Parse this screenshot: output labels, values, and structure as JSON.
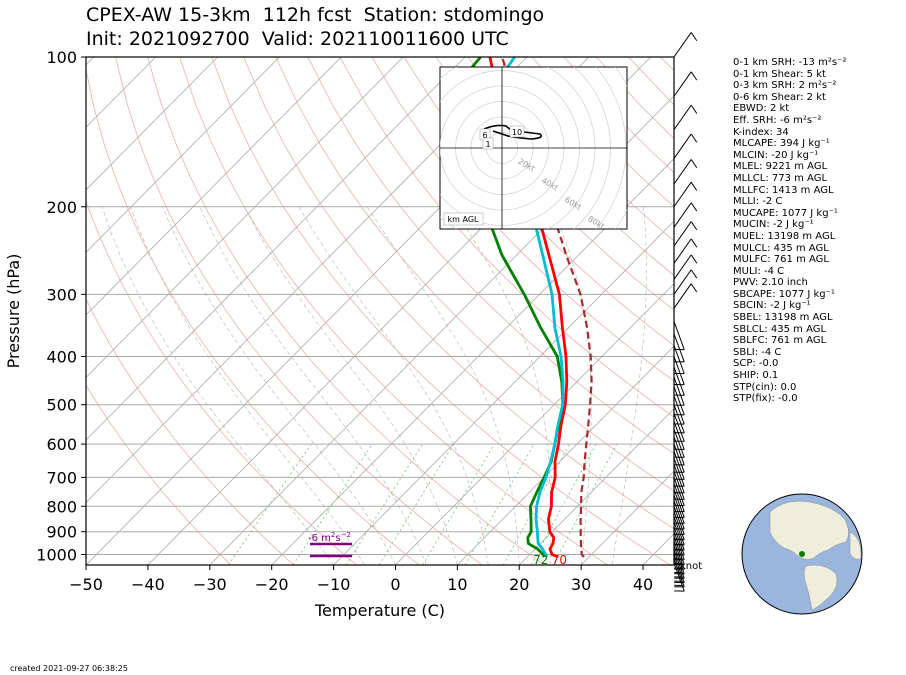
{
  "header": {
    "title_line1": "CPEX-AW 15-3km  112h fcst  Station: stdomingo",
    "title_line2": "Init: 2021092700  Valid: 202110011600 UTC"
  },
  "chart_data": {
    "type": "skew-t log-p",
    "xlabel": "Temperature (C)",
    "ylabel": "Pressure (hPa)",
    "xlim": [
      -50,
      45
    ],
    "ylim": [
      1050,
      100
    ],
    "y_scale": "log",
    "x_ticks": [
      -50,
      -40,
      -30,
      -20,
      -10,
      0,
      10,
      20,
      30,
      40
    ],
    "x_tick_labels": [
      "−50",
      "−40",
      "−30",
      "−20",
      "−10",
      "0",
      "10",
      "20",
      "30",
      "40"
    ],
    "y_ticks": [
      1000,
      900,
      800,
      700,
      600,
      500,
      400,
      300,
      200,
      100
    ],
    "grid": true,
    "series": [
      {
        "color": "#ff0000",
        "points": [
          [
            1012,
            25
          ],
          [
            1000,
            23.6
          ],
          [
            975,
            22.4
          ],
          [
            950,
            22
          ],
          [
            925,
            21.2
          ],
          [
            900,
            19.6
          ],
          [
            850,
            17.4
          ],
          [
            800,
            15.8
          ],
          [
            750,
            13.6
          ],
          [
            700,
            11.8
          ],
          [
            650,
            9.2
          ],
          [
            600,
            7
          ],
          [
            550,
            4.4
          ],
          [
            500,
            1.8
          ],
          [
            450,
            -1.6
          ],
          [
            400,
            -5.8
          ],
          [
            350,
            -11
          ],
          [
            300,
            -16.8
          ],
          [
            250,
            -24.8
          ],
          [
            200,
            -34.6
          ],
          [
            175,
            -40.6
          ],
          [
            150,
            -47.5
          ],
          [
            130,
            -54
          ],
          [
            120,
            -58
          ],
          [
            110,
            -62
          ],
          [
            100,
            -66
          ]
        ]
      },
      {
        "color": "#008000",
        "points": [
          [
            1012,
            22.8
          ],
          [
            1000,
            22.2
          ],
          [
            975,
            20.4
          ],
          [
            950,
            18
          ],
          [
            925,
            17
          ],
          [
            900,
            16.6
          ],
          [
            850,
            14.6
          ],
          [
            800,
            12.4
          ],
          [
            750,
            11.2
          ],
          [
            700,
            10
          ],
          [
            650,
            8.6
          ],
          [
            600,
            6.4
          ],
          [
            550,
            4
          ],
          [
            500,
            1.4
          ],
          [
            450,
            -2.4
          ],
          [
            400,
            -7.2
          ],
          [
            350,
            -14.5
          ],
          [
            300,
            -22.5
          ],
          [
            250,
            -32.4
          ],
          [
            200,
            -43
          ],
          [
            175,
            -49.5
          ],
          [
            150,
            -56
          ],
          [
            130,
            -63
          ],
          [
            120,
            -66
          ],
          [
            110,
            -67
          ],
          [
            100,
            -67.5
          ]
        ]
      },
      {
        "color": "#00bcd4",
        "points": [
          [
            1012,
            23.2
          ],
          [
            1000,
            22.6
          ],
          [
            975,
            21.2
          ],
          [
            950,
            19.6
          ],
          [
            925,
            18.6
          ],
          [
            900,
            17.6
          ],
          [
            850,
            15.4
          ],
          [
            800,
            13.4
          ],
          [
            750,
            11.7
          ],
          [
            700,
            10.3
          ],
          [
            650,
            8.5
          ],
          [
            600,
            6.4
          ],
          [
            550,
            3.9
          ],
          [
            500,
            1.4
          ],
          [
            450,
            -2.2
          ],
          [
            400,
            -6.6
          ],
          [
            350,
            -12.2
          ],
          [
            300,
            -18
          ],
          [
            250,
            -25.8
          ],
          [
            200,
            -35.4
          ],
          [
            175,
            -41.4
          ],
          [
            150,
            -48
          ],
          [
            130,
            -54.5
          ],
          [
            120,
            -58
          ],
          [
            110,
            -61
          ],
          [
            100,
            -62
          ]
        ]
      },
      {
        "color": "#a52a2a",
        "dash": true,
        "points": [
          [
            1012,
            29.2
          ],
          [
            1000,
            28.4
          ],
          [
            950,
            26.5
          ],
          [
            900,
            24.6
          ],
          [
            850,
            22.6
          ],
          [
            800,
            20.6
          ],
          [
            750,
            18.4
          ],
          [
            700,
            16.4
          ],
          [
            650,
            14
          ],
          [
            600,
            11.5
          ],
          [
            550,
            8.8
          ],
          [
            500,
            5.8
          ],
          [
            450,
            2.4
          ],
          [
            400,
            -1.8
          ],
          [
            350,
            -7
          ],
          [
            300,
            -13.4
          ],
          [
            250,
            -22
          ],
          [
            200,
            -32.2
          ],
          [
            150,
            -45.4
          ],
          [
            120,
            -56
          ],
          [
            100,
            -64
          ]
        ]
      }
    ],
    "surface_labels": [
      {
        "text": "72",
        "color": "#008000",
        "t": 22.2
      },
      {
        "text": "70",
        "color": "#ff0000",
        "t": 25.2
      }
    ],
    "srh_annotation": "-6 m$^2$s$^{-2}$",
    "knot_label": "knot",
    "hodograph": {
      "rings": [
        "20kt",
        "40kt",
        "60kt",
        "80kt"
      ],
      "labels": [
        "6",
        "10",
        "1"
      ],
      "footer": "km AGL"
    }
  },
  "stats": [
    "0-1 km SRH: -13 m²s⁻²",
    "0-1 km Shear: 5 kt",
    "0-3 km SRH: 2 m²s⁻²",
    "0-6 km Shear: 2 kt",
    "EBWD: 2 kt",
    "Eff. SRH: -6 m²s⁻²",
    "K-index: 34",
    "MLCAPE: 394 J kg⁻¹",
    "MLCIN: -20 J kg⁻¹",
    "MLEL: 9221 m AGL",
    "MLLCL: 773 m AGL",
    "MLLFC: 1413 m AGL",
    "MLLI: -2 C",
    "MUCAPE: 1077 J kg⁻¹",
    "MUCIN: -2 J kg⁻¹",
    "MUEL: 13198 m AGL",
    "MULCL: 435 m AGL",
    "MULFC: 761 m AGL",
    "MULI: -4 C",
    "PWV: 2.10 inch",
    "SBCAPE: 1077 J kg⁻¹",
    "SBCIN: -2 J kg⁻¹",
    "SBEL: 13198 m AGL",
    "SBLCL: 435 m AGL",
    "SBLFC: 761 m AGL",
    "SBLI: -4 C",
    "SCP: -0.0",
    "SHIP: 0.1",
    "STP(cin): 0.0",
    "STP(fix): -0.0"
  ],
  "footer": {
    "created": "created 2021-09-27 06:38:25"
  },
  "colors": {
    "ocean": "#9bb6de",
    "land": "#efeedd",
    "station": "#008000"
  }
}
